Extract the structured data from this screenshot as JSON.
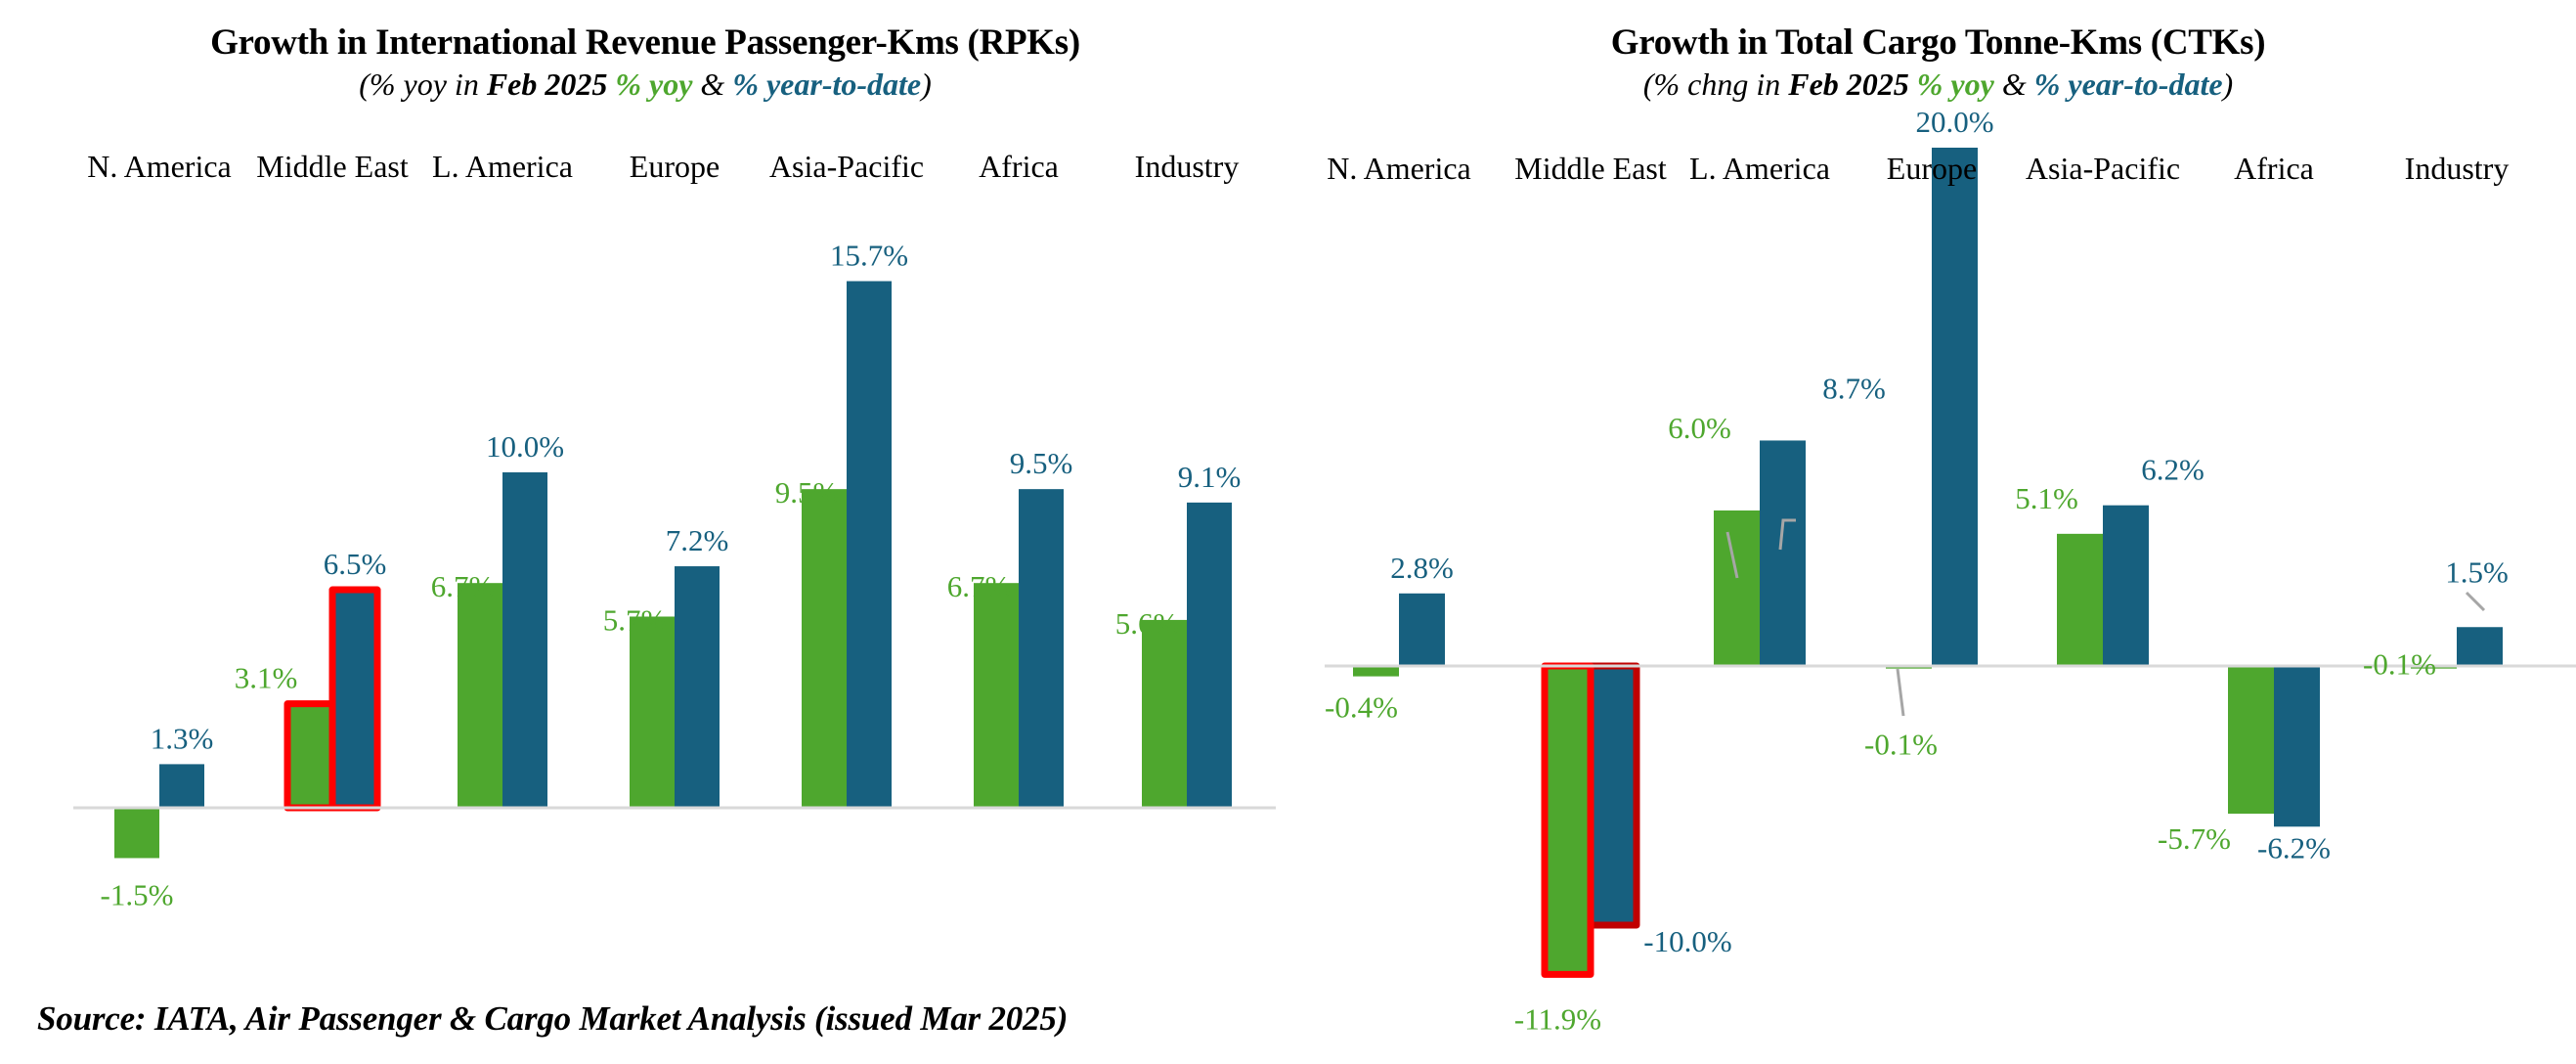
{
  "colors": {
    "yoy": "#4ea72e",
    "ytd": "#17607f",
    "highlight": "#ff0000",
    "axis": "#d9d9d9",
    "leader": "#a6a6a6"
  },
  "source": "Source: IATA, Air Passenger & Cargo Market Analysis (issued Mar 2025)",
  "chart_data": [
    {
      "type": "bar",
      "title": "Growth in International Revenue Passenger-Kms (RPKs)",
      "subtitle": {
        "prefix": "(% yoy in ",
        "bold": "Feb 2025",
        "yoy_label": "% yoy",
        "amp": "&",
        "ytd_label": "% year-to-date",
        "suffix": ")"
      },
      "categories": [
        "N. America",
        "Middle East",
        "L. America",
        "Europe",
        "Asia-Pacific",
        "Africa",
        "Industry"
      ],
      "series": [
        {
          "name": "% yoy",
          "values": [
            -1.5,
            3.1,
            6.7,
            5.7,
            9.5,
            6.7,
            5.6
          ],
          "labels": [
            "-1.5%",
            "3.1%",
            "6.7%",
            "5.7%",
            "9.5%",
            "6.7%",
            "5.6%"
          ]
        },
        {
          "name": "% year-to-date",
          "values": [
            1.3,
            6.5,
            10.0,
            7.2,
            15.7,
            9.5,
            9.1
          ],
          "labels": [
            "1.3%",
            "6.5%",
            "10.0%",
            "7.2%",
            "15.7%",
            "9.5%",
            "9.1%"
          ]
        }
      ],
      "highlighted_category": "Middle East",
      "xlabel": "",
      "ylabel": "",
      "ylim": [
        -4,
        17
      ],
      "grid": false,
      "legend": "in-subtitle"
    },
    {
      "type": "bar",
      "title": "Growth in Total Cargo Tonne-Kms (CTKs)",
      "subtitle": {
        "prefix": "(% chng in ",
        "bold": "Feb 2025",
        "yoy_label": "% yoy",
        "amp": "&",
        "ytd_label": "% year-to-date",
        "suffix": ")"
      },
      "categories": [
        "N. America",
        "Middle East",
        "L. America",
        "Europe",
        "Asia-Pacific",
        "Africa",
        "Industry"
      ],
      "series": [
        {
          "name": "% yoy",
          "values": [
            -0.4,
            -11.9,
            6.0,
            -0.1,
            5.1,
            -5.7,
            -0.1
          ],
          "labels": [
            "-0.4%",
            "-11.9%",
            "6.0%",
            "-0.1%",
            "5.1%",
            "-5.7%",
            "-0.1%"
          ]
        },
        {
          "name": "% year-to-date",
          "values": [
            2.8,
            -10.0,
            8.7,
            20.0,
            6.2,
            -6.2,
            1.5
          ],
          "labels": [
            "2.8%",
            "-10.0%",
            "8.7%",
            "20.0%",
            "6.2%",
            "-6.2%",
            "1.5%"
          ]
        }
      ],
      "highlighted_category": "Middle East",
      "xlabel": "",
      "ylabel": "",
      "ylim": [
        -15,
        23
      ],
      "grid": false,
      "legend": "in-subtitle"
    }
  ]
}
